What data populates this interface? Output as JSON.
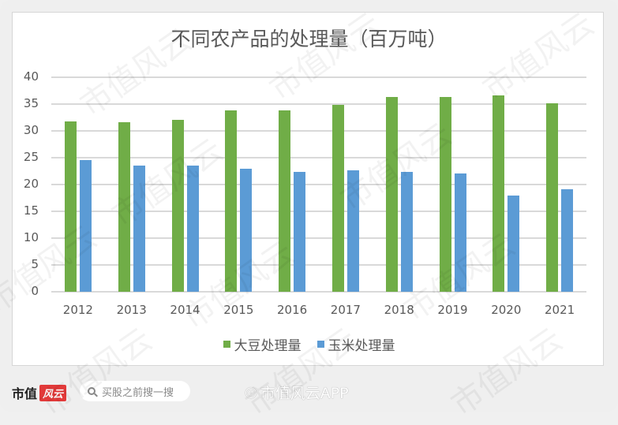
{
  "chart_data": {
    "type": "bar",
    "title": "不同农产品的处理量（百万吨）",
    "xlabel": "",
    "ylabel": "",
    "categories": [
      "2012",
      "2013",
      "2014",
      "2015",
      "2016",
      "2017",
      "2018",
      "2019",
      "2020",
      "2021"
    ],
    "series": [
      {
        "name": "大豆处理量",
        "color": "#70AD47",
        "values": [
          31.8,
          31.6,
          32.1,
          33.8,
          33.8,
          34.8,
          36.3,
          36.3,
          36.6,
          35.1
        ]
      },
      {
        "name": "玉米处理量",
        "color": "#5B9BD5",
        "values": [
          24.5,
          23.6,
          23.6,
          23.0,
          22.3,
          22.6,
          22.3,
          22.0,
          17.9,
          19.1
        ]
      }
    ],
    "ylim": [
      0,
      40
    ],
    "yticks": [
      "0",
      "5",
      "10",
      "15",
      "20",
      "25",
      "30",
      "35",
      "40"
    ],
    "grid": true,
    "legend_position": "bottom"
  },
  "footer": {
    "brand_text": "市值",
    "brand_badge": "风云",
    "search_placeholder": "买股之前搜一搜",
    "weibo_watermark": "市值风云APP"
  },
  "watermark_text": "市值风云"
}
